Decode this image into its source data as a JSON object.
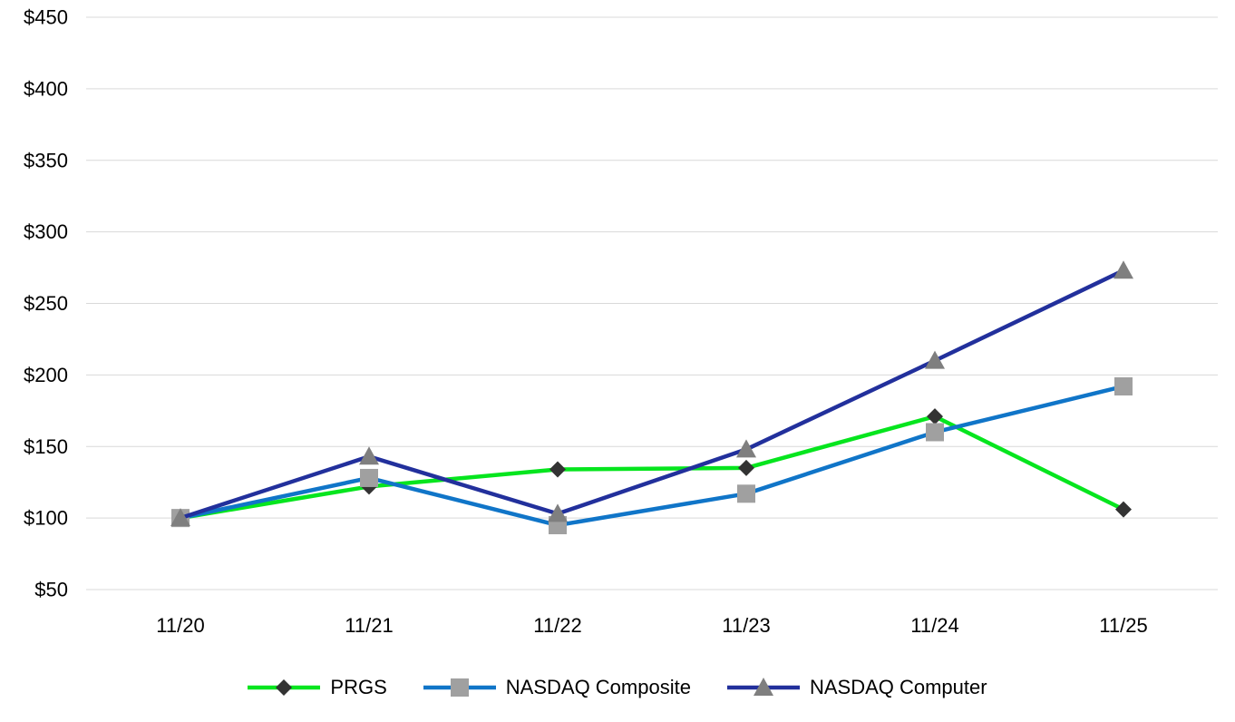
{
  "chart_data": {
    "type": "line",
    "title": "",
    "xlabel": "",
    "ylabel": "",
    "categories": [
      "11/20",
      "11/21",
      "11/22",
      "11/23",
      "11/24",
      "11/25"
    ],
    "series": [
      {
        "name": "PRGS",
        "color": "#06E51E",
        "marker": "diamond",
        "marker_color": "#333333",
        "values": [
          100,
          122,
          134,
          135,
          171,
          106
        ]
      },
      {
        "name": "NASDAQ Composite",
        "color": "#1075C8",
        "marker": "square",
        "marker_color": "#A0A0A0",
        "values": [
          100,
          128,
          95,
          117,
          160,
          192
        ]
      },
      {
        "name": "NASDAQ Computer",
        "color": "#22309C",
        "marker": "triangle",
        "marker_color": "#7F7F7F",
        "values": [
          100,
          143,
          103,
          148,
          210,
          273
        ]
      }
    ],
    "ylim": [
      50,
      450
    ],
    "ytick_step": 50,
    "y_prefix": "$",
    "grid": "on",
    "grid_color": "#D9D9D9",
    "text_color": "#000000",
    "legend_position": "bottom"
  }
}
